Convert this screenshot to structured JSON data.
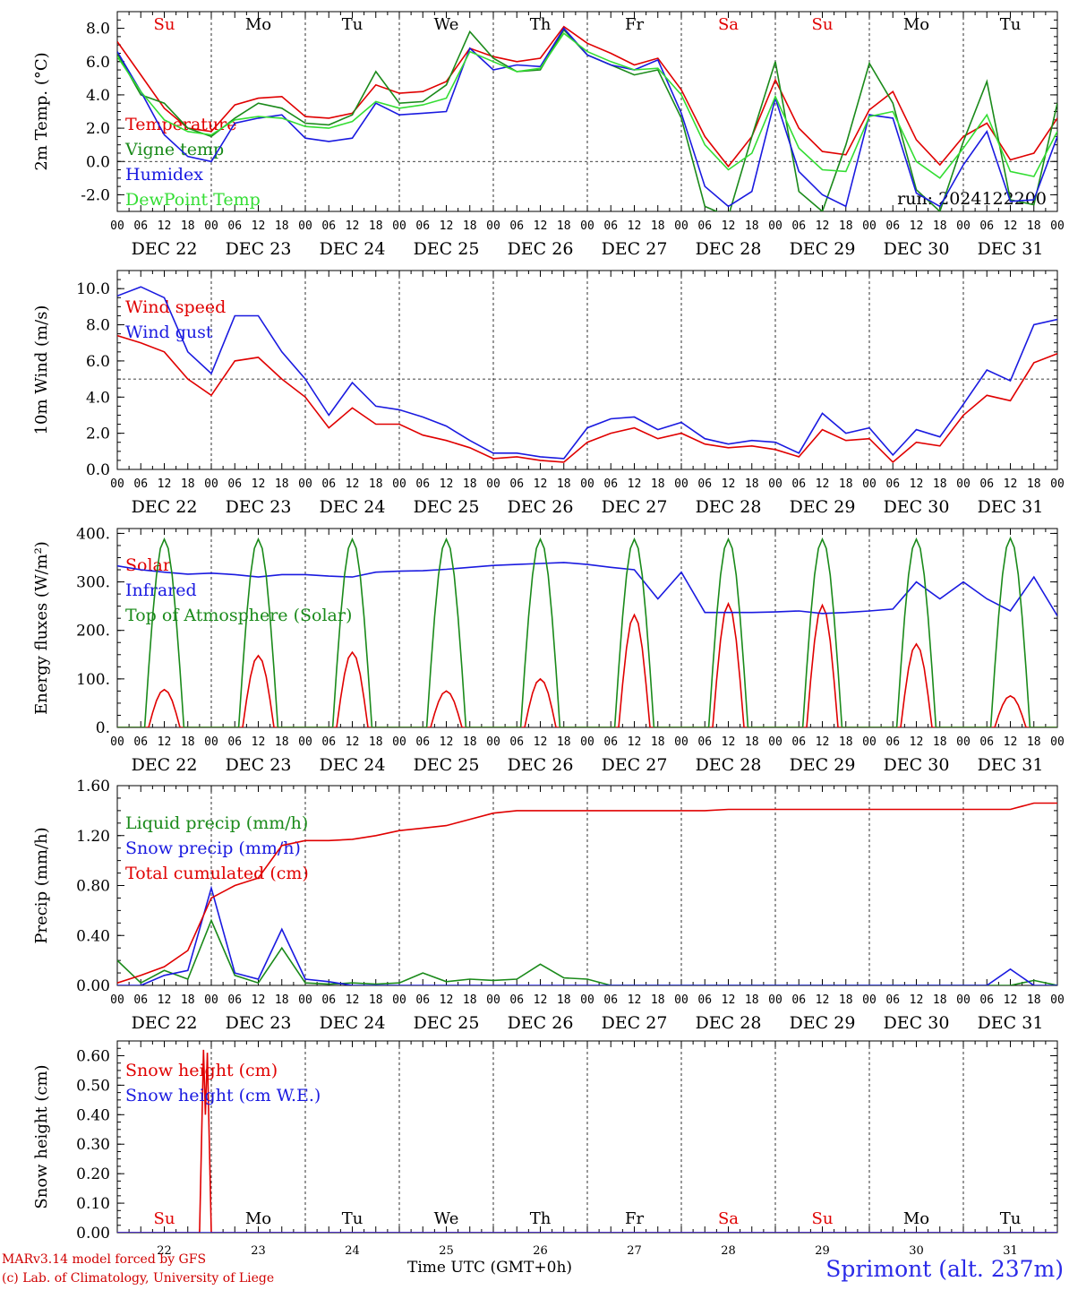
{
  "meta": {
    "run": "run: 2024122200",
    "credit_model": "MARv3.14 model forced by GFS",
    "credit_lab": "(c) Lab. of Climatology, University of Liege",
    "x_title": "Time UTC (GMT+0h)",
    "station": "Sprimont (alt. 237m)"
  },
  "colors": {
    "red": "#e00000",
    "green": "#1a8a1a",
    "blue": "#1a1ae0",
    "lightgreen": "#33dd33",
    "axis": "#000000"
  },
  "days": {
    "weekday": [
      "Su",
      "Mo",
      "Tu",
      "We",
      "Th",
      "Fr",
      "Sa",
      "Su",
      "Mo",
      "Tu"
    ],
    "weekday_color": [
      "red",
      "black",
      "black",
      "black",
      "black",
      "black",
      "red",
      "red",
      "black",
      "black"
    ],
    "date_label": [
      "DEC 22",
      "DEC 23",
      "DEC 24",
      "DEC 25",
      "DEC 26",
      "DEC 27",
      "DEC 28",
      "DEC 29",
      "DEC 30",
      "DEC 31"
    ],
    "day_number": [
      "22",
      "23",
      "24",
      "25",
      "26",
      "27",
      "28",
      "29",
      "30",
      "31"
    ],
    "hour_ticks": [
      "00",
      "06",
      "12",
      "18"
    ]
  },
  "chart_data": [
    {
      "id": "temp",
      "type": "line",
      "ylabel": "2m Temp. (°C)",
      "ylim": [
        -3,
        9
      ],
      "yticks": [
        -2,
        0,
        2,
        4,
        6,
        8
      ],
      "ytick_labels": [
        "-2.0",
        "0.0",
        "2.0",
        "4.0",
        "6.0",
        "8.0"
      ],
      "hline": 0,
      "x_start_hour": 0,
      "x_end_hour": 240,
      "series": [
        {
          "name": "Temperature",
          "color": "red",
          "x": [
            0,
            6,
            12,
            18,
            24,
            30,
            36,
            42,
            48,
            54,
            60,
            66,
            72,
            78,
            84,
            90,
            96,
            102,
            108,
            114,
            120,
            126,
            132,
            138,
            144,
            150,
            156,
            162,
            168,
            174,
            180,
            186,
            192,
            198,
            204,
            210,
            216,
            222,
            228,
            234,
            240
          ],
          "values": [
            7.2,
            5.2,
            3.2,
            2.0,
            1.8,
            3.4,
            3.8,
            3.9,
            2.7,
            2.6,
            2.9,
            4.6,
            4.1,
            4.2,
            4.8,
            6.8,
            6.3,
            6.0,
            6.2,
            8.1,
            7.1,
            6.5,
            5.8,
            6.2,
            4.3,
            1.5,
            -0.3,
            1.5,
            4.9,
            2.0,
            0.6,
            0.4,
            3.1,
            4.2,
            1.3,
            -0.2,
            1.5,
            2.3,
            0.1,
            0.5,
            2.6
          ]
        },
        {
          "name": "Vigne temp",
          "color": "green",
          "x": [
            0,
            6,
            12,
            18,
            24,
            30,
            36,
            42,
            48,
            54,
            60,
            66,
            72,
            78,
            84,
            90,
            96,
            102,
            108,
            114,
            120,
            126,
            132,
            138,
            144,
            150,
            156,
            162,
            168,
            174,
            180,
            186,
            192,
            198,
            204,
            210,
            216,
            222,
            228,
            234,
            240
          ],
          "values": [
            6.5,
            4.0,
            3.5,
            2.0,
            1.5,
            2.6,
            3.5,
            3.2,
            2.3,
            2.2,
            2.8,
            5.4,
            3.5,
            3.6,
            4.6,
            7.8,
            6.2,
            5.4,
            5.5,
            7.9,
            6.4,
            5.8,
            5.2,
            5.5,
            2.6,
            -2.7,
            -3.3,
            1.5,
            6.0,
            -1.8,
            -3.0,
            1.0,
            5.9,
            3.5,
            -1.7,
            -3.0,
            1.2,
            4.8,
            -2.3,
            -2.6,
            3.5
          ]
        },
        {
          "name": "Humidex",
          "color": "blue",
          "x": [
            0,
            6,
            12,
            18,
            24,
            30,
            36,
            42,
            48,
            54,
            60,
            66,
            72,
            78,
            84,
            90,
            96,
            102,
            108,
            114,
            120,
            126,
            132,
            138,
            144,
            150,
            156,
            162,
            168,
            174,
            180,
            186,
            192,
            198,
            204,
            210,
            216,
            222,
            228,
            234,
            240
          ],
          "values": [
            6.6,
            4.2,
            1.6,
            0.3,
            0.0,
            2.3,
            2.6,
            2.8,
            1.4,
            1.2,
            1.4,
            3.5,
            2.8,
            2.9,
            3.0,
            6.8,
            5.5,
            5.8,
            5.7,
            8.0,
            6.4,
            5.8,
            5.5,
            6.1,
            2.9,
            -1.5,
            -2.7,
            -1.8,
            3.8,
            -0.6,
            -2.0,
            -2.7,
            2.8,
            2.6,
            -1.9,
            -2.7,
            -0.2,
            1.8,
            -2.4,
            -2.3,
            1.5
          ]
        },
        {
          "name": "DewPoint Temp",
          "color": "lightgreen",
          "x": [
            0,
            6,
            12,
            18,
            24,
            30,
            36,
            42,
            48,
            54,
            60,
            66,
            72,
            78,
            84,
            90,
            96,
            102,
            108,
            114,
            120,
            126,
            132,
            138,
            144,
            150,
            156,
            162,
            168,
            174,
            180,
            186,
            192,
            198,
            204,
            210,
            216,
            222,
            228,
            234,
            240
          ],
          "values": [
            6.3,
            4.2,
            2.5,
            1.8,
            1.6,
            2.5,
            2.7,
            2.6,
            2.1,
            2.0,
            2.4,
            3.6,
            3.2,
            3.4,
            3.8,
            6.6,
            6.0,
            5.4,
            5.6,
            7.7,
            6.6,
            6.0,
            5.5,
            5.6,
            4.0,
            1.0,
            -0.5,
            0.5,
            3.9,
            0.8,
            -0.5,
            -0.6,
            2.7,
            3.0,
            0.0,
            -1.0,
            0.8,
            2.8,
            -0.6,
            -0.9,
            1.8
          ]
        }
      ]
    },
    {
      "id": "wind",
      "type": "line",
      "ylabel": "10m Wind (m/s)",
      "ylim": [
        0,
        11
      ],
      "yticks": [
        0,
        2,
        4,
        6,
        8,
        10
      ],
      "ytick_labels": [
        "0.0",
        "2.0",
        "4.0",
        "6.0",
        "8.0",
        "10.0"
      ],
      "hline": 5,
      "x_start_hour": 0,
      "x_end_hour": 240,
      "series": [
        {
          "name": "Wind speed",
          "color": "red",
          "x": [
            0,
            6,
            12,
            18,
            24,
            30,
            36,
            42,
            48,
            54,
            60,
            66,
            72,
            78,
            84,
            90,
            96,
            102,
            108,
            114,
            120,
            126,
            132,
            138,
            144,
            150,
            156,
            162,
            168,
            174,
            180,
            186,
            192,
            198,
            204,
            210,
            216,
            222,
            228,
            234,
            240
          ],
          "values": [
            7.4,
            7.0,
            6.5,
            5.0,
            4.1,
            6.0,
            6.2,
            5.0,
            4.0,
            2.3,
            3.4,
            2.5,
            2.5,
            1.9,
            1.6,
            1.2,
            0.6,
            0.7,
            0.5,
            0.4,
            1.5,
            2.0,
            2.3,
            1.7,
            2.0,
            1.4,
            1.2,
            1.3,
            1.1,
            0.7,
            2.2,
            1.6,
            1.7,
            0.4,
            1.5,
            1.3,
            3.0,
            4.1,
            3.8,
            5.9,
            6.4
          ]
        },
        {
          "name": "Wind gust",
          "color": "blue",
          "x": [
            0,
            6,
            12,
            18,
            24,
            30,
            36,
            42,
            48,
            54,
            60,
            66,
            72,
            78,
            84,
            90,
            96,
            102,
            108,
            114,
            120,
            126,
            132,
            138,
            144,
            150,
            156,
            162,
            168,
            174,
            180,
            186,
            192,
            198,
            204,
            210,
            216,
            222,
            228,
            234,
            240
          ],
          "values": [
            9.6,
            10.1,
            9.5,
            6.5,
            5.3,
            8.5,
            8.5,
            6.5,
            5.0,
            3.0,
            4.8,
            3.5,
            3.3,
            2.9,
            2.4,
            1.6,
            0.9,
            0.9,
            0.7,
            0.6,
            2.3,
            2.8,
            2.9,
            2.2,
            2.6,
            1.7,
            1.4,
            1.6,
            1.5,
            0.9,
            3.1,
            2.0,
            2.3,
            0.8,
            2.2,
            1.8,
            3.6,
            5.5,
            4.9,
            8.0,
            8.3
          ]
        }
      ]
    },
    {
      "id": "energy",
      "type": "line",
      "ylabel": "Energy fluxes (W/m²)",
      "ylim": [
        0,
        410
      ],
      "yticks": [
        0,
        100,
        200,
        300,
        400
      ],
      "ytick_labels": [
        "0.",
        "100.",
        "200.",
        "300.",
        "400."
      ],
      "x_start_hour": 0,
      "x_end_hour": 240,
      "series": [
        {
          "name": "Solar",
          "color": "red",
          "day_peaks": [
            78,
            148,
            155,
            75,
            100,
            232,
            255,
            252,
            172,
            65
          ]
        },
        {
          "name": "Infrared",
          "color": "blue",
          "x": [
            0,
            6,
            12,
            18,
            24,
            30,
            36,
            42,
            48,
            54,
            60,
            66,
            72,
            78,
            84,
            90,
            96,
            102,
            108,
            114,
            120,
            126,
            132,
            138,
            144,
            150,
            156,
            162,
            168,
            174,
            180,
            186,
            192,
            198,
            204,
            210,
            216,
            222,
            228,
            234,
            240
          ],
          "values": [
            333,
            325,
            320,
            316,
            318,
            315,
            310,
            315,
            315,
            312,
            310,
            320,
            322,
            323,
            326,
            330,
            334,
            336,
            338,
            340,
            336,
            330,
            325,
            265,
            320,
            237,
            237,
            237,
            238,
            240,
            235,
            237,
            240,
            244,
            300,
            265,
            300,
            265,
            240,
            310,
            230
          ]
        },
        {
          "name": "Top of Atmosphere (Solar)",
          "color": "green",
          "day_peaks": [
            388,
            388,
            388,
            388,
            388,
            388,
            388,
            388,
            388,
            390
          ]
        }
      ]
    },
    {
      "id": "precip",
      "type": "line",
      "ylabel": "Precip (mm/h)",
      "ylim": [
        0,
        1.6
      ],
      "yticks": [
        0,
        0.4,
        0.8,
        1.2,
        1.6
      ],
      "ytick_labels": [
        "0.00",
        "0.40",
        "0.80",
        "1.20",
        "1.60"
      ],
      "x_start_hour": 0,
      "x_end_hour": 240,
      "series": [
        {
          "name": "Liquid precip (mm/h)",
          "color": "green",
          "x": [
            0,
            6,
            12,
            18,
            24,
            30,
            36,
            42,
            48,
            54,
            60,
            66,
            72,
            78,
            84,
            90,
            96,
            102,
            108,
            114,
            120,
            126,
            132,
            138,
            144,
            150,
            156,
            162,
            168,
            174,
            180,
            186,
            192,
            198,
            204,
            210,
            216,
            222,
            228,
            234,
            240
          ],
          "values": [
            0.2,
            0.02,
            0.12,
            0.05,
            0.52,
            0.08,
            0.02,
            0.3,
            0.02,
            0.01,
            0.02,
            0.01,
            0.02,
            0.1,
            0.03,
            0.05,
            0.04,
            0.05,
            0.17,
            0.06,
            0.05,
            0.0,
            0.0,
            0.0,
            0.0,
            0.0,
            0.0,
            0.0,
            0.0,
            0.0,
            0.0,
            0.0,
            0.0,
            0.0,
            0.0,
            0.0,
            0.0,
            0.0,
            0.0,
            0.04,
            0.0
          ]
        },
        {
          "name": "Snow precip (mm/h)",
          "color": "blue",
          "x": [
            0,
            6,
            12,
            18,
            24,
            30,
            36,
            42,
            48,
            54,
            60,
            66,
            72,
            78,
            84,
            90,
            96,
            102,
            108,
            114,
            120,
            126,
            132,
            138,
            144,
            150,
            156,
            162,
            168,
            174,
            180,
            186,
            192,
            198,
            204,
            210,
            216,
            222,
            228,
            234,
            240
          ],
          "values": [
            0.0,
            0.0,
            0.08,
            0.12,
            0.78,
            0.1,
            0.05,
            0.45,
            0.05,
            0.03,
            0.0,
            0.0,
            0.0,
            0.0,
            0.0,
            0.0,
            0.0,
            0.0,
            0.0,
            0.0,
            0.0,
            0.0,
            0.0,
            0.0,
            0.0,
            0.0,
            0.0,
            0.0,
            0.0,
            0.0,
            0.0,
            0.0,
            0.0,
            0.0,
            0.0,
            0.0,
            0.0,
            0.0,
            0.13,
            0.0,
            0.0
          ]
        },
        {
          "name": "Total cumulated (cm)",
          "color": "red",
          "x": [
            0,
            6,
            12,
            18,
            24,
            30,
            36,
            42,
            48,
            54,
            60,
            66,
            72,
            78,
            84,
            90,
            96,
            102,
            108,
            114,
            120,
            126,
            132,
            138,
            144,
            150,
            156,
            162,
            168,
            174,
            180,
            186,
            192,
            198,
            204,
            210,
            216,
            222,
            228,
            234,
            240
          ],
          "values": [
            0.02,
            0.08,
            0.15,
            0.28,
            0.7,
            0.8,
            0.86,
            1.12,
            1.16,
            1.16,
            1.17,
            1.2,
            1.24,
            1.26,
            1.28,
            1.33,
            1.38,
            1.4,
            1.4,
            1.4,
            1.4,
            1.4,
            1.4,
            1.4,
            1.4,
            1.4,
            1.41,
            1.41,
            1.41,
            1.41,
            1.41,
            1.41,
            1.41,
            1.41,
            1.41,
            1.41,
            1.41,
            1.41,
            1.41,
            1.46,
            1.46
          ]
        }
      ]
    },
    {
      "id": "snow",
      "type": "line",
      "ylabel": "Snow height (cm)",
      "ylim": [
        0,
        0.65
      ],
      "yticks": [
        0,
        0.1,
        0.2,
        0.3,
        0.4,
        0.5,
        0.6
      ],
      "ytick_labels": [
        "0.00",
        "0.10",
        "0.20",
        "0.30",
        "0.40",
        "0.50",
        "0.60"
      ],
      "x_start_hour": 0,
      "x_end_hour": 240,
      "series": [
        {
          "name": "Snow height (cm)",
          "color": "red",
          "x": [
            0,
            21,
            22,
            22.5,
            23,
            24,
            240
          ],
          "values": [
            0,
            0,
            0.62,
            0.4,
            0.61,
            0,
            0
          ]
        },
        {
          "name": "Snow height (cm W.E.)",
          "color": "blue",
          "x": [
            0,
            240
          ],
          "values": [
            0,
            0
          ]
        }
      ]
    }
  ]
}
